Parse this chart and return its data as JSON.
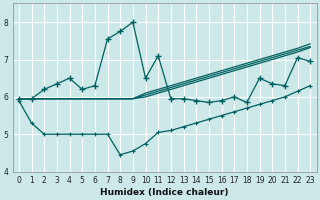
{
  "xlabel": "Humidex (Indice chaleur)",
  "bg_color": "#cce8e8",
  "line_color": "#006060",
  "xlim": [
    -0.5,
    23.5
  ],
  "ylim": [
    4.0,
    8.5
  ],
  "yticks": [
    4,
    5,
    6,
    7,
    8
  ],
  "xticks": [
    0,
    1,
    2,
    3,
    4,
    5,
    6,
    7,
    8,
    9,
    10,
    11,
    12,
    13,
    14,
    15,
    16,
    17,
    18,
    19,
    20,
    21,
    22,
    23
  ],
  "series": {
    "curve_main_x": [
      0,
      1,
      2,
      3,
      4,
      5,
      6,
      7,
      8,
      9,
      10,
      11,
      12,
      13,
      14,
      15,
      16,
      17,
      18,
      19,
      20,
      21,
      22,
      23
    ],
    "curve_main_y": [
      5.95,
      5.95,
      6.2,
      6.35,
      6.5,
      6.2,
      6.3,
      7.55,
      7.75,
      8.0,
      6.5,
      7.1,
      5.95,
      5.95,
      5.9,
      5.85,
      5.9,
      6.0,
      5.85,
      6.5,
      6.35,
      6.3,
      7.05,
      6.95
    ],
    "curve_low_x": [
      0,
      1,
      2,
      3,
      4,
      5,
      6,
      7,
      8,
      9,
      10,
      11,
      12,
      13,
      14,
      15,
      16,
      17,
      18,
      19,
      20,
      21,
      22,
      23
    ],
    "curve_low_y": [
      5.9,
      5.3,
      5.0,
      5.0,
      5.0,
      5.0,
      5.0,
      5.0,
      4.45,
      4.55,
      4.75,
      5.05,
      5.1,
      5.2,
      5.3,
      5.4,
      5.5,
      5.6,
      5.7,
      5.8,
      5.9,
      6.0,
      6.15,
      6.3
    ],
    "curve_flat1_x": [
      0,
      1,
      2,
      3,
      4,
      5,
      6,
      7,
      8,
      9,
      10,
      11,
      12,
      13,
      14,
      15,
      16,
      17,
      18,
      19,
      20,
      21,
      22,
      23
    ],
    "curve_flat1_y": [
      5.95,
      5.95,
      5.95,
      5.95,
      5.95,
      5.95,
      5.95,
      5.95,
      5.95,
      5.95,
      6.05,
      6.15,
      6.25,
      6.35,
      6.45,
      6.55,
      6.65,
      6.75,
      6.85,
      6.95,
      7.05,
      7.15,
      7.25,
      7.35
    ],
    "curve_flat2_x": [
      0,
      1,
      2,
      3,
      4,
      5,
      6,
      7,
      8,
      9,
      10,
      11,
      12,
      13,
      14,
      15,
      16,
      17,
      18,
      19,
      20,
      21,
      22,
      23
    ],
    "curve_flat2_y": [
      5.95,
      5.95,
      5.95,
      5.95,
      5.95,
      5.95,
      5.95,
      5.95,
      5.95,
      5.95,
      6.1,
      6.2,
      6.3,
      6.4,
      6.5,
      6.6,
      6.7,
      6.8,
      6.9,
      7.0,
      7.1,
      7.2,
      7.3,
      7.42
    ],
    "curve_flat3_x": [
      0,
      1,
      2,
      3,
      4,
      5,
      6,
      7,
      8,
      9,
      10,
      11,
      12,
      13,
      14,
      15,
      16,
      17,
      18,
      19,
      20,
      21,
      22,
      23
    ],
    "curve_flat3_y": [
      5.95,
      5.95,
      5.95,
      5.95,
      5.95,
      5.95,
      5.95,
      5.95,
      5.95,
      5.95,
      6.0,
      6.1,
      6.2,
      6.3,
      6.4,
      6.5,
      6.6,
      6.7,
      6.8,
      6.9,
      7.0,
      7.1,
      7.2,
      7.32
    ]
  }
}
